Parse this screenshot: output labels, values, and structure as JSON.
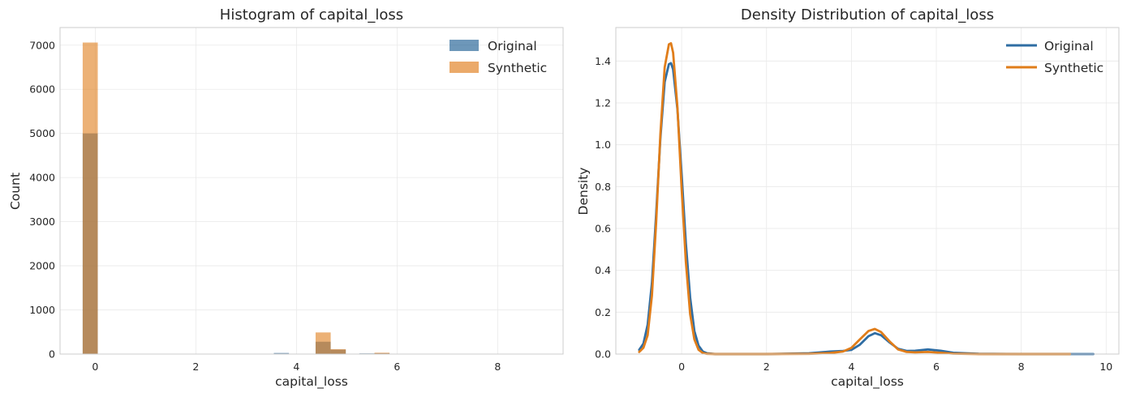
{
  "chart_data": [
    {
      "type": "bar",
      "title": "Histogram of capital_loss",
      "xlabel": "capital_loss",
      "ylabel": "Count",
      "xlim": [
        -0.7,
        9.3
      ],
      "ylim": [
        0,
        7400
      ],
      "xticks": [
        0,
        2,
        4,
        6,
        8
      ],
      "yticks": [
        0,
        1000,
        2000,
        3000,
        4000,
        5000,
        6000,
        7000
      ],
      "grid": true,
      "legend_position": "top-right",
      "bin_width": 0.3,
      "series": [
        {
          "name": "Original",
          "color": "#1f5f94",
          "bins": [
            {
              "x0": -0.25,
              "value": 5000
            },
            {
              "x0": 3.55,
              "value": 25
            },
            {
              "x0": 4.38,
              "value": 280
            },
            {
              "x0": 4.68,
              "value": 100
            },
            {
              "x0": 5.25,
              "value": 15
            },
            {
              "x0": 5.55,
              "value": 20
            }
          ]
        },
        {
          "name": "Synthetic",
          "color": "#e07d1a",
          "bins": [
            {
              "x0": -0.25,
              "value": 7060
            },
            {
              "x0": 3.55,
              "value": 10
            },
            {
              "x0": 4.38,
              "value": 490
            },
            {
              "x0": 4.68,
              "value": 110
            },
            {
              "x0": 5.25,
              "value": 10
            },
            {
              "x0": 5.55,
              "value": 30
            }
          ]
        }
      ]
    },
    {
      "type": "line",
      "title": "Density Distribution of capital_loss",
      "xlabel": "capital_loss",
      "ylabel": "Density",
      "xlim": [
        -1.55,
        10.3
      ],
      "ylim": [
        0,
        1.56
      ],
      "xticks": [
        0,
        2,
        4,
        6,
        8,
        10
      ],
      "yticks": [
        0.0,
        0.2,
        0.4,
        0.6,
        0.8,
        1.0,
        1.2,
        1.4
      ],
      "grid": true,
      "legend_position": "top-right",
      "series": [
        {
          "name": "Original",
          "color": "#2f6da3",
          "x": [
            -1.0,
            -0.9,
            -0.8,
            -0.7,
            -0.6,
            -0.5,
            -0.4,
            -0.3,
            -0.25,
            -0.2,
            -0.1,
            0.0,
            0.1,
            0.2,
            0.3,
            0.4,
            0.5,
            0.6,
            0.8,
            1.0,
            2.0,
            3.0,
            3.5,
            3.8,
            4.0,
            4.2,
            4.4,
            4.55,
            4.7,
            4.9,
            5.1,
            5.3,
            5.5,
            5.8,
            6.1,
            6.4,
            7.0,
            8.0,
            9.0,
            9.7
          ],
          "y": [
            0.02,
            0.05,
            0.14,
            0.34,
            0.67,
            1.03,
            1.3,
            1.385,
            1.39,
            1.36,
            1.17,
            0.86,
            0.53,
            0.27,
            0.11,
            0.04,
            0.012,
            0.004,
            0.0,
            0.0,
            0.0,
            0.004,
            0.012,
            0.015,
            0.02,
            0.045,
            0.085,
            0.1,
            0.09,
            0.055,
            0.025,
            0.015,
            0.016,
            0.022,
            0.016,
            0.006,
            0.001,
            0.0,
            0.0,
            0.0
          ]
        },
        {
          "name": "Synthetic",
          "color": "#e07d1a",
          "x": [
            -1.0,
            -0.9,
            -0.8,
            -0.7,
            -0.6,
            -0.5,
            -0.4,
            -0.3,
            -0.25,
            -0.2,
            -0.1,
            0.0,
            0.1,
            0.2,
            0.3,
            0.4,
            0.5,
            0.6,
            0.8,
            1.0,
            2.0,
            3.0,
            3.5,
            3.8,
            4.0,
            4.2,
            4.4,
            4.55,
            4.7,
            4.9,
            5.1,
            5.3,
            5.5,
            5.8,
            6.1,
            6.4,
            7.0,
            8.0,
            9.0,
            9.15
          ],
          "y": [
            0.01,
            0.03,
            0.09,
            0.28,
            0.63,
            1.05,
            1.37,
            1.48,
            1.485,
            1.44,
            1.18,
            0.79,
            0.44,
            0.19,
            0.07,
            0.02,
            0.005,
            0.001,
            0.0,
            0.0,
            0.0,
            0.001,
            0.005,
            0.012,
            0.03,
            0.07,
            0.11,
            0.12,
            0.105,
            0.06,
            0.022,
            0.01,
            0.008,
            0.01,
            0.006,
            0.002,
            0.0,
            0.0,
            0.0,
            0.0
          ]
        }
      ]
    }
  ]
}
